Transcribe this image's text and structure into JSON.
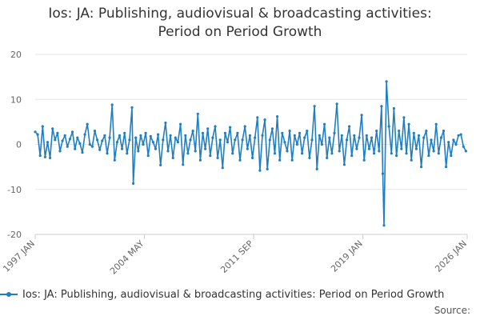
{
  "chart_data": {
    "type": "line",
    "title_line1": "Ios: JA: Publishing, audiovisual & broadcasting activities:",
    "title_line2": "Period on Period Growth",
    "xlabel": "",
    "ylabel": "",
    "ylim": [
      -20,
      20
    ],
    "yticks": [
      20,
      10,
      0,
      -10,
      -20
    ],
    "xlim": [
      "1997 JAN",
      "2026 JAN"
    ],
    "xticks": [
      "1997 JAN",
      "2004 MAY",
      "2011 SEP",
      "2019 JAN",
      "2026 JAN"
    ],
    "grid": "horizontal",
    "legend_position": "bottom",
    "series": [
      {
        "name": "Ios: JA: Publishing, audiovisual & broadcasting activities: Period on Period Growth",
        "color": "#1f7fc2",
        "points": [
          [
            "1997-01",
            2.8
          ],
          [
            "1997-03",
            2.2
          ],
          [
            "1997-05",
            -2.5
          ],
          [
            "1997-07",
            4.0
          ],
          [
            "1997-09",
            -2.8
          ],
          [
            "1997-11",
            0.5
          ],
          [
            "1998-01",
            -3.0
          ],
          [
            "1998-03",
            3.5
          ],
          [
            "1998-05",
            1.0
          ],
          [
            "1998-07",
            2.5
          ],
          [
            "1998-09",
            -1.5
          ],
          [
            "1998-11",
            0.8
          ],
          [
            "1999-01",
            2.0
          ],
          [
            "1999-03",
            -0.5
          ],
          [
            "1999-05",
            1.2
          ],
          [
            "1999-07",
            2.8
          ],
          [
            "1999-09",
            -1.0
          ],
          [
            "1999-11",
            1.5
          ],
          [
            "2000-01",
            0.2
          ],
          [
            "2000-03",
            -1.8
          ],
          [
            "2000-05",
            2.2
          ],
          [
            "2000-07",
            4.5
          ],
          [
            "2000-09",
            0.0
          ],
          [
            "2000-11",
            -0.5
          ],
          [
            "2001-01",
            3.0
          ],
          [
            "2001-03",
            1.0
          ],
          [
            "2001-05",
            -1.2
          ],
          [
            "2001-07",
            0.8
          ],
          [
            "2001-09",
            2.0
          ],
          [
            "2001-11",
            -2.0
          ],
          [
            "2002-01",
            1.5
          ],
          [
            "2002-03",
            8.8
          ],
          [
            "2002-05",
            -3.5
          ],
          [
            "2002-07",
            0.5
          ],
          [
            "2002-09",
            2.0
          ],
          [
            "2002-11",
            -1.0
          ],
          [
            "2003-01",
            2.5
          ],
          [
            "2003-03",
            -2.0
          ],
          [
            "2003-05",
            1.0
          ],
          [
            "2003-07",
            8.2
          ],
          [
            "2003-08",
            -8.7
          ],
          [
            "2003-10",
            1.5
          ],
          [
            "2003-12",
            -1.5
          ],
          [
            "2004-02",
            2.0
          ],
          [
            "2004-04",
            0.0
          ],
          [
            "2004-06",
            2.5
          ],
          [
            "2004-08",
            -2.5
          ],
          [
            "2004-10",
            1.8
          ],
          [
            "2004-12",
            0.5
          ],
          [
            "2005-02",
            -1.0
          ],
          [
            "2005-04",
            2.2
          ],
          [
            "2005-06",
            -4.6
          ],
          [
            "2005-08",
            1.0
          ],
          [
            "2005-10",
            4.8
          ],
          [
            "2005-12",
            -1.5
          ],
          [
            "2006-02",
            2.0
          ],
          [
            "2006-04",
            -3.0
          ],
          [
            "2006-06",
            1.5
          ],
          [
            "2006-08",
            0.5
          ],
          [
            "2006-10",
            4.5
          ],
          [
            "2006-12",
            -4.5
          ],
          [
            "2007-02",
            2.0
          ],
          [
            "2007-04",
            -2.0
          ],
          [
            "2007-06",
            1.0
          ],
          [
            "2007-08",
            3.0
          ],
          [
            "2007-10",
            -1.5
          ],
          [
            "2007-12",
            6.8
          ],
          [
            "2008-02",
            -3.5
          ],
          [
            "2008-04",
            2.5
          ],
          [
            "2008-06",
            -1.0
          ],
          [
            "2008-08",
            3.5
          ],
          [
            "2008-10",
            -2.5
          ],
          [
            "2008-12",
            1.5
          ],
          [
            "2009-02",
            4.0
          ],
          [
            "2009-04",
            -3.0
          ],
          [
            "2009-06",
            1.0
          ],
          [
            "2009-08",
            -5.2
          ],
          [
            "2009-10",
            2.5
          ],
          [
            "2009-12",
            0.5
          ],
          [
            "2010-02",
            3.8
          ],
          [
            "2010-04",
            -2.0
          ],
          [
            "2010-06",
            1.0
          ],
          [
            "2010-08",
            2.5
          ],
          [
            "2010-10",
            -3.5
          ],
          [
            "2010-12",
            1.0
          ],
          [
            "2011-02",
            4.0
          ],
          [
            "2011-04",
            -1.0
          ],
          [
            "2011-06",
            2.0
          ],
          [
            "2011-08",
            -3.0
          ],
          [
            "2011-10",
            1.5
          ],
          [
            "2011-12",
            6.0
          ],
          [
            "2012-02",
            -5.8
          ],
          [
            "2012-04",
            2.0
          ],
          [
            "2012-06",
            5.5
          ],
          [
            "2012-08",
            -5.5
          ],
          [
            "2012-10",
            1.0
          ],
          [
            "2012-12",
            3.5
          ],
          [
            "2013-02",
            -2.0
          ],
          [
            "2013-04",
            6.2
          ],
          [
            "2013-06",
            -3.5
          ],
          [
            "2013-08",
            2.5
          ],
          [
            "2013-10",
            0.5
          ],
          [
            "2013-12",
            -1.5
          ],
          [
            "2014-02",
            3.0
          ],
          [
            "2014-04",
            -3.5
          ],
          [
            "2014-06",
            2.0
          ],
          [
            "2014-08",
            0.0
          ],
          [
            "2014-10",
            2.5
          ],
          [
            "2014-12",
            -2.0
          ],
          [
            "2015-02",
            1.5
          ],
          [
            "2015-04",
            3.0
          ],
          [
            "2015-06",
            -3.0
          ],
          [
            "2015-08",
            1.0
          ],
          [
            "2015-10",
            8.5
          ],
          [
            "2015-12",
            -5.5
          ],
          [
            "2016-02",
            2.0
          ],
          [
            "2016-04",
            0.0
          ],
          [
            "2016-06",
            4.5
          ],
          [
            "2016-08",
            -3.0
          ],
          [
            "2016-10",
            1.5
          ],
          [
            "2016-12",
            -2.0
          ],
          [
            "2017-02",
            2.5
          ],
          [
            "2017-04",
            9.0
          ],
          [
            "2017-06",
            -1.5
          ],
          [
            "2017-08",
            2.0
          ],
          [
            "2017-10",
            -4.5
          ],
          [
            "2017-12",
            1.0
          ],
          [
            "2018-02",
            4.0
          ],
          [
            "2018-04",
            -2.5
          ],
          [
            "2018-06",
            2.0
          ],
          [
            "2018-08",
            -1.0
          ],
          [
            "2018-10",
            1.5
          ],
          [
            "2018-12",
            6.5
          ],
          [
            "2019-02",
            -3.5
          ],
          [
            "2019-04",
            2.0
          ],
          [
            "2019-06",
            -1.0
          ],
          [
            "2019-08",
            1.5
          ],
          [
            "2019-10",
            -2.0
          ],
          [
            "2019-12",
            3.0
          ],
          [
            "2020-02",
            -1.5
          ],
          [
            "2020-04",
            8.5
          ],
          [
            "2020-05",
            -6.5
          ],
          [
            "2020-06",
            -18.0
          ],
          [
            "2020-08",
            14.0
          ],
          [
            "2020-10",
            4.0
          ],
          [
            "2020-12",
            -2.0
          ],
          [
            "2021-02",
            8.0
          ],
          [
            "2021-04",
            -2.5
          ],
          [
            "2021-06",
            3.0
          ],
          [
            "2021-08",
            -1.0
          ],
          [
            "2021-10",
            6.0
          ],
          [
            "2021-12",
            -2.0
          ],
          [
            "2022-02",
            4.5
          ],
          [
            "2022-04",
            -3.5
          ],
          [
            "2022-06",
            2.5
          ],
          [
            "2022-08",
            -1.0
          ],
          [
            "2022-10",
            2.0
          ],
          [
            "2022-12",
            -5.0
          ],
          [
            "2023-02",
            1.5
          ],
          [
            "2023-04",
            3.0
          ],
          [
            "2023-06",
            -2.5
          ],
          [
            "2023-08",
            1.0
          ],
          [
            "2023-10",
            -1.5
          ],
          [
            "2023-12",
            4.5
          ],
          [
            "2024-02",
            -2.0
          ],
          [
            "2024-04",
            1.5
          ],
          [
            "2024-06",
            3.0
          ],
          [
            "2024-08",
            -5.0
          ],
          [
            "2024-10",
            0.5
          ],
          [
            "2024-12",
            -2.5
          ],
          [
            "2025-02",
            1.0
          ],
          [
            "2025-04",
            0.0
          ],
          [
            "2025-06",
            2.0
          ],
          [
            "2025-08",
            2.2
          ],
          [
            "2025-10",
            -0.5
          ],
          [
            "2025-12",
            -1.5
          ]
        ]
      }
    ]
  },
  "footer": {
    "source_label": "Source:"
  }
}
